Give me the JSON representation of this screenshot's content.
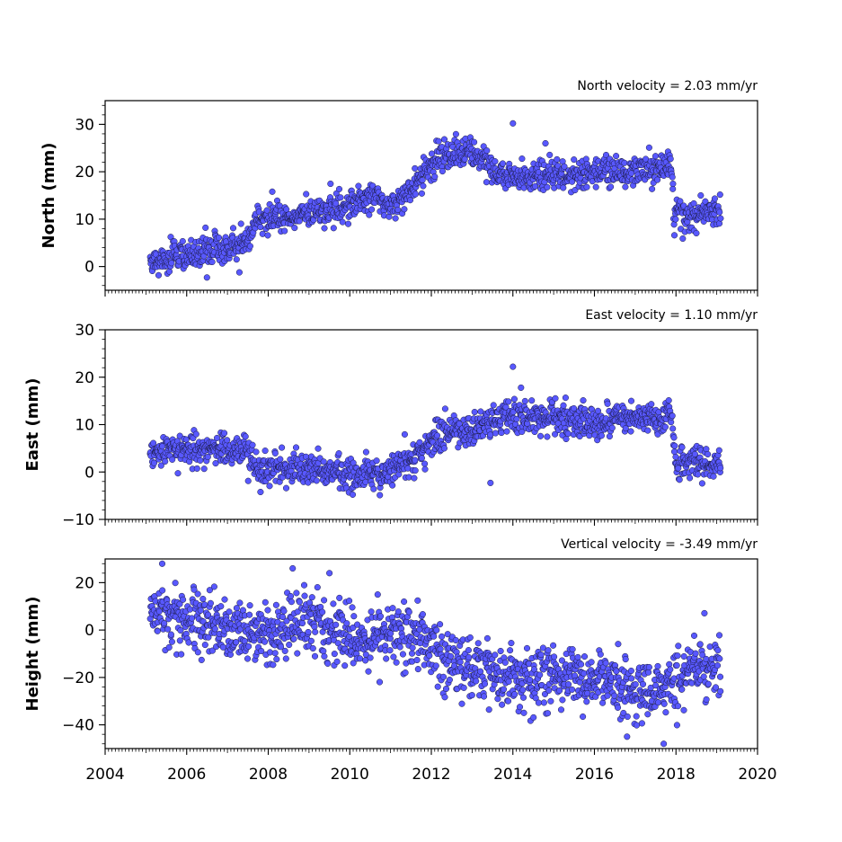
{
  "x_ticks": [
    "2004",
    "2006",
    "2008",
    "2010",
    "2012",
    "2014",
    "2016",
    "2018",
    "2020"
  ],
  "marker_fill": "#5858ff",
  "marker_edge": "#1a1a40",
  "chart_data": [
    {
      "type": "scatter",
      "title": "North velocity = 2.03 mm/yr",
      "ylabel": "North (mm)",
      "xlim": [
        2004,
        2020
      ],
      "ylim": [
        -5,
        35
      ],
      "y_ticks": [
        "0",
        "10",
        "20",
        "30"
      ],
      "grid": false,
      "series": [
        {
          "x_range": [
            2005.1,
            2019.1
          ],
          "trend_knots": [
            [
              2005.1,
              1.0
            ],
            [
              2006.0,
              2.5
            ],
            [
              2007.0,
              4.0
            ],
            [
              2007.55,
              5.0
            ],
            [
              2007.7,
              10.0
            ],
            [
              2009.0,
              11.0
            ],
            [
              2010.0,
              13.0
            ],
            [
              2010.6,
              15.0
            ],
            [
              2011.0,
              12.5
            ],
            [
              2011.5,
              16.0
            ],
            [
              2011.8,
              20.0
            ],
            [
              2012.3,
              24.0
            ],
            [
              2013.0,
              24.0
            ],
            [
              2013.5,
              21.0
            ],
            [
              2013.6,
              19.0
            ],
            [
              2014.5,
              18.5
            ],
            [
              2016.0,
              20.0
            ],
            [
              2017.0,
              20.5
            ],
            [
              2017.9,
              21.0
            ],
            [
              2017.95,
              10.5
            ],
            [
              2019.1,
              11.5
            ]
          ],
          "noise_mm": 1.6,
          "count": 1300,
          "outliers": [
            [
              2014.0,
              30.2
            ],
            [
              2008.1,
              15.8
            ],
            [
              2014.8,
              26.0
            ]
          ]
        }
      ]
    },
    {
      "type": "scatter",
      "title": "East velocity = 1.10 mm/yr",
      "ylabel": "East (mm)",
      "xlim": [
        2004,
        2020
      ],
      "ylim": [
        -10,
        30
      ],
      "y_ticks": [
        "−10",
        "0",
        "10",
        "20",
        "30"
      ],
      "grid": false,
      "series": [
        {
          "x_range": [
            2005.1,
            2019.1
          ],
          "trend_knots": [
            [
              2005.1,
              3.5
            ],
            [
              2006.0,
              5.0
            ],
            [
              2007.0,
              4.5
            ],
            [
              2007.5,
              4.0
            ],
            [
              2007.8,
              0.5
            ],
            [
              2009.0,
              1.0
            ],
            [
              2010.0,
              -0.5
            ],
            [
              2011.0,
              0.0
            ],
            [
              2011.5,
              3.0
            ],
            [
              2012.3,
              8.0
            ],
            [
              2013.0,
              9.0
            ],
            [
              2013.8,
              12.0
            ],
            [
              2015.0,
              11.5
            ],
            [
              2016.0,
              10.5
            ],
            [
              2017.9,
              12.0
            ],
            [
              2018.0,
              2.0
            ],
            [
              2019.1,
              1.5
            ]
          ],
          "noise_mm": 1.7,
          "count": 1300,
          "outliers": [
            [
              2014.0,
              22.2
            ],
            [
              2014.2,
              17.8
            ],
            [
              2013.45,
              -2.3
            ]
          ]
        }
      ]
    },
    {
      "type": "scatter",
      "title": "Vertical velocity = -3.49 mm/yr",
      "ylabel": "Height (mm)",
      "xlim": [
        2004,
        2020
      ],
      "ylim": [
        -50,
        30
      ],
      "y_ticks": [
        "−40",
        "−20",
        "0",
        "20"
      ],
      "grid": false,
      "series": [
        {
          "x_range": [
            2005.1,
            2019.1
          ],
          "trend_knots": [
            [
              2005.1,
              8.0
            ],
            [
              2006.0,
              4.0
            ],
            [
              2007.0,
              0.0
            ],
            [
              2008.0,
              -3.0
            ],
            [
              2008.7,
              5.0
            ],
            [
              2009.5,
              0.0
            ],
            [
              2010.0,
              -6.0
            ],
            [
              2011.0,
              -2.0
            ],
            [
              2011.8,
              -2.0
            ],
            [
              2012.5,
              -15.0
            ],
            [
              2013.5,
              -18.0
            ],
            [
              2014.0,
              -22.0
            ],
            [
              2015.0,
              -20.0
            ],
            [
              2016.0,
              -22.0
            ],
            [
              2017.0,
              -26.0
            ],
            [
              2017.9,
              -22.0
            ],
            [
              2018.5,
              -14.0
            ],
            [
              2019.1,
              -16.0
            ]
          ],
          "noise_mm": 6.5,
          "count": 1300,
          "outliers": [
            [
              2005.4,
              28.0
            ],
            [
              2008.6,
              26.0
            ],
            [
              2016.8,
              -45.0
            ],
            [
              2017.7,
              -48.0
            ],
            [
              2009.5,
              24.0
            ]
          ]
        }
      ]
    }
  ]
}
